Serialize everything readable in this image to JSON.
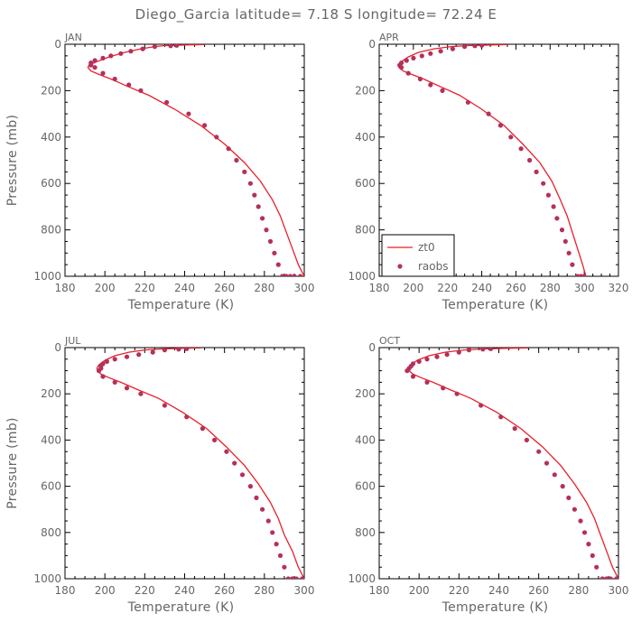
{
  "title": "Diego_Garcia  latitude= 7.18 S longitude= 72.24 E",
  "colors": {
    "model_line": "#e8202a",
    "obs_point": "#b5305a",
    "text": "#666666",
    "frame": "#000000"
  },
  "legend": {
    "entries": [
      "zt0",
      "raobs"
    ],
    "placement": "bottom-left of APR panel"
  },
  "chart_data": [
    {
      "type": "line",
      "panel": "JAN",
      "xlabel": "Temperature (K)",
      "ylabel": "Pressure (mb)",
      "xlim": [
        180,
        300
      ],
      "ylim": [
        1000,
        0
      ],
      "xticks": [
        180,
        200,
        220,
        240,
        260,
        280,
        300
      ],
      "yticks": [
        0,
        200,
        400,
        600,
        800,
        1000
      ],
      "series": [
        {
          "name": "zt0",
          "kind": "line",
          "x": [
            250,
            240,
            230,
            225,
            218,
            210,
            202,
            196,
            192,
            191.5,
            193,
            197,
            203,
            211,
            222,
            235,
            248,
            260,
            270,
            278,
            284,
            288,
            291,
            294,
            297,
            300
          ],
          "y": [
            1,
            3,
            6,
            10,
            20,
            35,
            55,
            75,
            90,
            100,
            115,
            130,
            150,
            180,
            220,
            280,
            350,
            430,
            510,
            590,
            670,
            740,
            810,
            880,
            950,
            1000
          ]
        },
        {
          "name": "raobs",
          "kind": "points",
          "x": [
            236,
            233,
            225,
            219,
            213,
            208,
            203,
            199,
            195,
            193,
            193,
            195,
            199,
            205,
            212,
            218,
            231,
            242,
            250,
            256,
            262,
            266,
            270,
            273,
            275,
            277,
            279,
            281,
            283,
            285,
            287,
            289,
            291,
            293,
            295,
            298
          ],
          "y": [
            5,
            7,
            10,
            20,
            30,
            40,
            50,
            60,
            70,
            80,
            90,
            100,
            125,
            150,
            175,
            200,
            250,
            300,
            350,
            400,
            450,
            500,
            550,
            600,
            650,
            700,
            750,
            800,
            850,
            900,
            950,
            1000,
            1000,
            1000,
            1000,
            1000
          ]
        }
      ]
    },
    {
      "type": "line",
      "panel": "APR",
      "xlabel": "Temperature (K)",
      "ylabel": "",
      "xlim": [
        180,
        320
      ],
      "ylim": [
        1000,
        0
      ],
      "xticks": [
        180,
        200,
        220,
        240,
        260,
        280,
        300,
        320
      ],
      "yticks": [
        0,
        200,
        400,
        600,
        800,
        1000
      ],
      "series": [
        {
          "name": "zt0",
          "kind": "line",
          "x": [
            255,
            245,
            232,
            222,
            212,
            203,
            197,
            193,
            191,
            191.5,
            194,
            199,
            206,
            215,
            227,
            240,
            253,
            264,
            274,
            281,
            286,
            290,
            293,
            296,
            299,
            301
          ],
          "y": [
            1,
            3,
            6,
            10,
            20,
            35,
            55,
            75,
            90,
            100,
            115,
            130,
            150,
            180,
            220,
            280,
            350,
            430,
            510,
            590,
            670,
            740,
            810,
            880,
            950,
            1000
          ]
        },
        {
          "name": "raobs",
          "kind": "points",
          "x": [
            240,
            236,
            230,
            223,
            216,
            210,
            205,
            200,
            196,
            193,
            192,
            193,
            197,
            204,
            210,
            217,
            232,
            244,
            251,
            257,
            263,
            268,
            272,
            276,
            279,
            282,
            284,
            287,
            289,
            291,
            293,
            296,
            298,
            300
          ],
          "y": [
            5,
            7,
            10,
            20,
            30,
            40,
            50,
            60,
            70,
            80,
            90,
            100,
            125,
            150,
            175,
            200,
            250,
            300,
            350,
            400,
            450,
            500,
            550,
            600,
            650,
            700,
            750,
            800,
            850,
            900,
            950,
            1000,
            1000,
            1000
          ]
        }
      ]
    },
    {
      "type": "line",
      "panel": "JUL",
      "xlabel": "Temperature (K)",
      "ylabel": "Pressure (mb)",
      "xlim": [
        180,
        300
      ],
      "ylim": [
        1000,
        0
      ],
      "xticks": [
        180,
        200,
        220,
        240,
        260,
        280,
        300
      ],
      "yticks": [
        0,
        200,
        400,
        600,
        800,
        1000
      ],
      "series": [
        {
          "name": "zt0",
          "kind": "line",
          "x": [
            248,
            238,
            228,
            220,
            212,
            205,
            200,
            197,
            196,
            196.5,
            198,
            202,
            208,
            216,
            227,
            239,
            251,
            261,
            270,
            277,
            283,
            287,
            290,
            294,
            297,
            300
          ],
          "y": [
            1,
            3,
            6,
            10,
            20,
            35,
            55,
            75,
            90,
            100,
            115,
            130,
            150,
            180,
            220,
            280,
            350,
            430,
            510,
            590,
            670,
            740,
            810,
            880,
            950,
            1000
          ]
        },
        {
          "name": "raobs",
          "kind": "points",
          "x": [
            241,
            237,
            230,
            224,
            217,
            211,
            205,
            201,
            199,
            198,
            198,
            197,
            199,
            205,
            211,
            218,
            230,
            241,
            249,
            255,
            261,
            265,
            269,
            273,
            276,
            279,
            282,
            284,
            286,
            288,
            290,
            292,
            294,
            296,
            299
          ],
          "y": [
            5,
            7,
            10,
            20,
            30,
            40,
            50,
            60,
            70,
            80,
            90,
            100,
            125,
            150,
            175,
            200,
            250,
            300,
            350,
            400,
            450,
            500,
            550,
            600,
            650,
            700,
            750,
            800,
            850,
            900,
            950,
            1000,
            1000,
            1000,
            1000
          ]
        }
      ]
    },
    {
      "type": "line",
      "panel": "OCT",
      "xlabel": "Temperature (K)",
      "ylabel": "",
      "xlim": [
        180,
        300
      ],
      "ylim": [
        1000,
        0
      ],
      "xticks": [
        180,
        200,
        220,
        240,
        260,
        280,
        300
      ],
      "yticks": [
        0,
        200,
        400,
        600,
        800,
        1000
      ],
      "series": [
        {
          "name": "zt0",
          "kind": "line",
          "x": [
            255,
            243,
            232,
            223,
            213,
            205,
            199,
            196,
            194.5,
            195,
            197,
            201,
            207,
            215,
            226,
            239,
            251,
            262,
            271,
            278,
            284,
            288,
            291,
            294,
            297,
            300
          ],
          "y": [
            1,
            3,
            6,
            10,
            20,
            35,
            55,
            75,
            90,
            100,
            115,
            130,
            150,
            180,
            220,
            280,
            350,
            430,
            510,
            590,
            670,
            740,
            810,
            880,
            950,
            1000
          ]
        },
        {
          "name": "raobs",
          "kind": "points",
          "x": [
            236,
            232,
            225,
            220,
            214,
            209,
            204,
            200,
            197,
            196,
            195,
            194,
            197,
            204,
            212,
            219,
            231,
            241,
            248,
            254,
            260,
            264,
            268,
            272,
            275,
            278,
            281,
            283,
            285,
            287,
            289,
            292,
            294,
            296,
            299
          ],
          "y": [
            5,
            7,
            10,
            20,
            30,
            40,
            50,
            60,
            70,
            80,
            90,
            100,
            125,
            150,
            175,
            200,
            250,
            300,
            350,
            400,
            450,
            500,
            550,
            600,
            650,
            700,
            750,
            800,
            850,
            900,
            950,
            1000,
            1000,
            1000,
            1000
          ]
        }
      ]
    }
  ]
}
